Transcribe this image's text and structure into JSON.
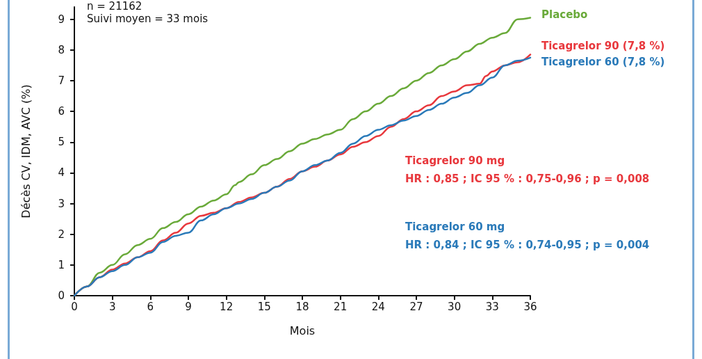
{
  "chart_data": {
    "type": "line",
    "xlabel": "Mois",
    "ylabel": "Décès CV, IDM, AVC (%)",
    "xlim": [
      0,
      36
    ],
    "xticks": [
      0,
      3,
      6,
      9,
      12,
      15,
      18,
      21,
      24,
      27,
      30,
      33,
      36
    ],
    "ylim": [
      0,
      9.4
    ],
    "yticks": [
      0,
      1,
      2,
      3,
      4,
      5,
      6,
      7,
      8,
      9
    ],
    "grid": false,
    "legend": false,
    "marker": "none",
    "line_style": "solid",
    "annotations": [
      "n = 21162",
      "Suivi moyen = 33 mois",
      "Ticagrelor 90 mg\nHR : 0,85 ; IC 95 % : 0,75-0,96 ; p = 0,008",
      "Ticagrelor 60 mg\nHR : 0,84 ; IC 95 % : 0,74-0,95 ; p = 0,004"
    ],
    "series": [
      {
        "name": "Placebo",
        "color": "#6aaa3a",
        "x": [
          0,
          1,
          2,
          3,
          4,
          5,
          6,
          7,
          8,
          9,
          10,
          11,
          12,
          12.7,
          13,
          14,
          15,
          16,
          17,
          18,
          19,
          20,
          21,
          22,
          23,
          24,
          25,
          26,
          27,
          28,
          29,
          30,
          31,
          32,
          33,
          34,
          35,
          36
        ],
        "values": [
          0,
          0.3,
          0.75,
          1.0,
          1.35,
          1.65,
          1.85,
          2.2,
          2.4,
          2.65,
          2.9,
          3.1,
          3.3,
          3.6,
          3.7,
          3.95,
          4.25,
          4.45,
          4.7,
          4.95,
          5.1,
          5.25,
          5.4,
          5.75,
          6.0,
          6.25,
          6.5,
          6.75,
          7.0,
          7.25,
          7.5,
          7.7,
          7.95,
          8.2,
          8.4,
          8.55,
          9.0,
          9.05
        ]
      },
      {
        "name": "Ticagrelor 90 (7,8 %)",
        "color": "#e8383d",
        "x": [
          0,
          1,
          2,
          3,
          4,
          5,
          6,
          7,
          8,
          9,
          10,
          11,
          12,
          13,
          14,
          15,
          16,
          17,
          18,
          19,
          20,
          21,
          22,
          23,
          24,
          25,
          26,
          27,
          28,
          29,
          30,
          31,
          32,
          32.5,
          33,
          34,
          35,
          36
        ],
        "values": [
          0,
          0.3,
          0.6,
          0.85,
          1.05,
          1.25,
          1.45,
          1.8,
          2.05,
          2.35,
          2.6,
          2.7,
          2.85,
          3.05,
          3.2,
          3.35,
          3.55,
          3.8,
          4.05,
          4.2,
          4.4,
          4.6,
          4.85,
          5.0,
          5.2,
          5.5,
          5.75,
          6.0,
          6.2,
          6.5,
          6.65,
          6.85,
          6.9,
          7.15,
          7.3,
          7.5,
          7.6,
          7.85
        ]
      },
      {
        "name": "Ticagrelor 60 (7,8 %)",
        "color": "#2a7ab9",
        "x": [
          0,
          1,
          2,
          3,
          4,
          5,
          6,
          7,
          8,
          9,
          10,
          11,
          12,
          13,
          14,
          15,
          16,
          17,
          18,
          19,
          20,
          21,
          22,
          23,
          24,
          25,
          26,
          27,
          28,
          29,
          30,
          31,
          32,
          33,
          34,
          35,
          36
        ],
        "values": [
          0,
          0.3,
          0.6,
          0.8,
          1.0,
          1.25,
          1.4,
          1.75,
          1.95,
          2.05,
          2.45,
          2.65,
          2.85,
          3.0,
          3.15,
          3.35,
          3.55,
          3.75,
          4.05,
          4.25,
          4.4,
          4.65,
          4.95,
          5.2,
          5.4,
          5.55,
          5.7,
          5.85,
          6.05,
          6.25,
          6.45,
          6.6,
          6.85,
          7.1,
          7.5,
          7.65,
          7.75
        ]
      }
    ]
  }
}
